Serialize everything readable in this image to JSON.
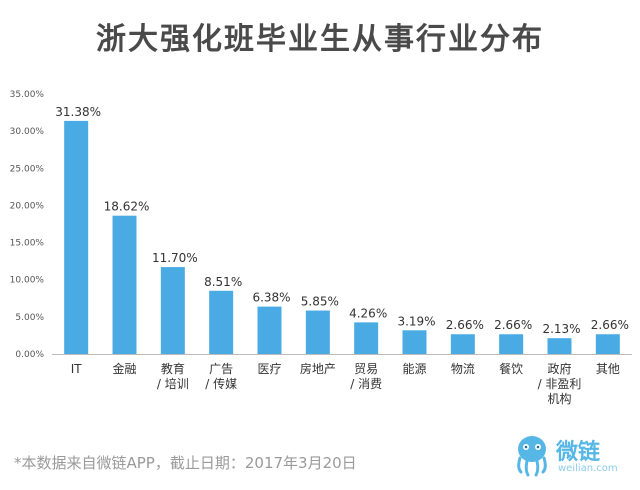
{
  "title": "浙大强化班毕业生从事行业分布",
  "source_note": "*本数据来自微链APP，截止日期：2017年3月20日",
  "logo": {
    "name": "微链",
    "url": "weilian.com"
  },
  "colors": {
    "bar": "#4aabe4",
    "label": "#333333",
    "axis": "#bbbbbb"
  },
  "chart_data": {
    "type": "bar",
    "title": "浙大强化班毕业生从事行业分布",
    "xlabel": "",
    "ylabel": "",
    "ylim": [
      0,
      35
    ],
    "yticks": [
      "0.00%",
      "5.00%",
      "10.00%",
      "15.00%",
      "20.00%",
      "25.00%",
      "30.00%",
      "35.00%"
    ],
    "grid": false,
    "categories": [
      [
        "IT"
      ],
      [
        "金融"
      ],
      [
        "教育",
        "/ 培训"
      ],
      [
        "广告",
        "/ 传媒"
      ],
      [
        "医疗"
      ],
      [
        "房地产"
      ],
      [
        "贸易",
        "/ 消费"
      ],
      [
        "能源"
      ],
      [
        "物流"
      ],
      [
        "餐饮"
      ],
      [
        "政府",
        "/ 非盈利",
        "机构"
      ],
      [
        "其他"
      ]
    ],
    "values": [
      31.38,
      18.62,
      11.7,
      8.51,
      6.38,
      5.85,
      4.26,
      3.19,
      2.66,
      2.66,
      2.13,
      2.66
    ],
    "value_labels": [
      "31.38%",
      "18.62%",
      "11.70%",
      "8.51%",
      "6.38%",
      "5.85%",
      "4.26%",
      "3.19%",
      "2.66%",
      "2.66%",
      "2.13%",
      "2.66%"
    ]
  }
}
